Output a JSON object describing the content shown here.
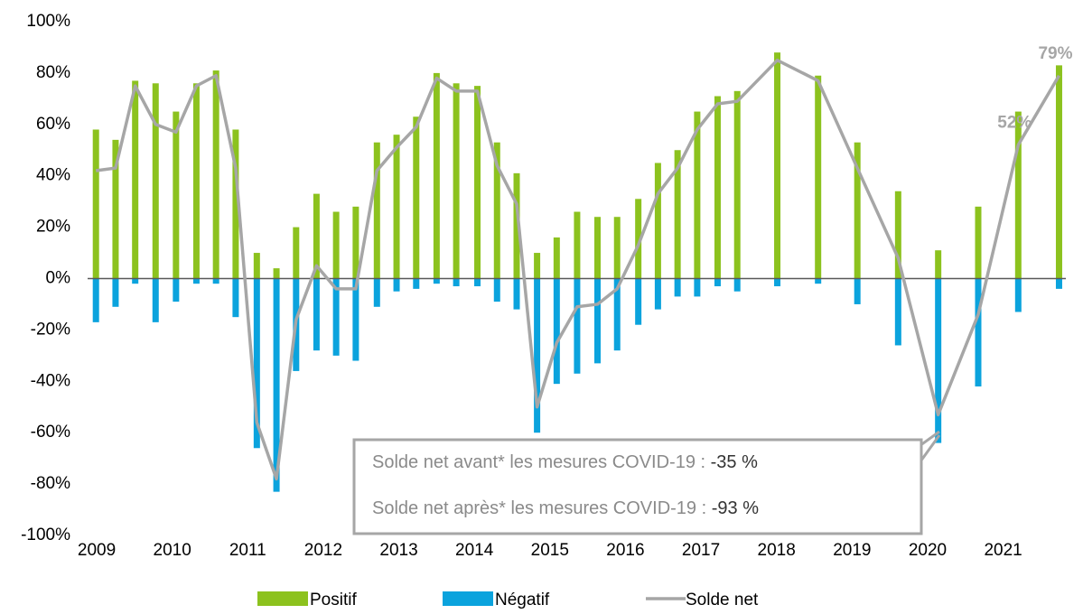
{
  "chart_data": {
    "type": "bar",
    "x": [
      2008.99,
      2009.25,
      2009.51,
      2009.78,
      2010.05,
      2010.32,
      2010.58,
      2010.84,
      2011.12,
      2011.38,
      2011.64,
      2011.91,
      2012.17,
      2012.43,
      2012.71,
      2012.97,
      2013.23,
      2013.5,
      2013.76,
      2014.04,
      2014.3,
      2014.56,
      2014.83,
      2015.09,
      2015.36,
      2015.63,
      2015.89,
      2016.17,
      2016.43,
      2016.69,
      2016.95,
      2017.22,
      2017.48,
      2018.01,
      2018.55,
      2019.07,
      2019.61,
      2020.14,
      2020.67,
      2021.2,
      2021.74
    ],
    "series": [
      {
        "name": "Positif",
        "type": "bar",
        "color": "#8cc21e",
        "values": [
          58,
          54,
          77,
          76,
          65,
          76,
          81,
          58,
          10,
          4,
          20,
          33,
          26,
          28,
          53,
          56,
          63,
          80,
          76,
          75,
          53,
          41,
          10,
          16,
          26,
          24,
          24,
          31,
          45,
          50,
          65,
          71,
          73,
          88,
          79,
          53,
          34,
          11,
          28,
          65,
          83
        ]
      },
      {
        "name": "Négatif",
        "type": "bar",
        "color": "#0ba3dd",
        "values": [
          -17,
          -11,
          -2,
          -17,
          -9,
          -2,
          -2,
          -15,
          -66,
          -83,
          -36,
          -28,
          -30,
          -32,
          -11,
          -5,
          -4,
          -2,
          -3,
          -3,
          -9,
          -12,
          -60,
          -41,
          -37,
          -33,
          -28,
          -18,
          -12,
          -7,
          -7,
          -3,
          -5,
          -3,
          -2,
          -10,
          -26,
          -64,
          -42,
          -13,
          -4
        ]
      },
      {
        "name": "Solde net",
        "type": "line",
        "color": "#a6a6a6",
        "values": [
          42,
          43,
          75,
          60,
          57,
          75,
          79,
          43,
          -56,
          -78,
          -16,
          5,
          -4,
          -4,
          42,
          51,
          59,
          78,
          73,
          73,
          44,
          29,
          -50,
          -25,
          -11,
          -10,
          -4,
          13,
          33,
          43,
          58,
          68,
          69,
          85,
          77,
          43,
          8,
          -53,
          -14,
          52,
          79
        ],
        "value_labels": [
          null,
          null,
          null,
          null,
          null,
          null,
          null,
          null,
          null,
          null,
          null,
          null,
          null,
          null,
          null,
          null,
          null,
          null,
          null,
          null,
          null,
          null,
          null,
          null,
          null,
          null,
          null,
          null,
          null,
          null,
          null,
          null,
          null,
          null,
          null,
          null,
          null,
          null,
          null,
          "52%",
          "79%"
        ]
      }
    ],
    "xlim": [
      2008.88,
      2021.83
    ],
    "xticks": [
      2009,
      2010,
      2011,
      2012,
      2013,
      2014,
      2015,
      2016,
      2017,
      2018,
      2019,
      2020,
      2021
    ],
    "ylim": [
      -100,
      100
    ],
    "yticks": [
      {
        "value": -100,
        "label": "-100%"
      },
      {
        "value": -80,
        "label": "-80%"
      },
      {
        "value": -60,
        "label": "-60%"
      },
      {
        "value": -40,
        "label": "-40%"
      },
      {
        "value": -20,
        "label": "-20%"
      },
      {
        "value": 0,
        "label": "0%"
      },
      {
        "value": 20,
        "label": "20%"
      },
      {
        "value": 40,
        "label": "40%"
      },
      {
        "value": 60,
        "label": "60%"
      },
      {
        "value": 80,
        "label": "80%"
      },
      {
        "value": 100,
        "label": "100%"
      }
    ],
    "annotations": [
      {
        "text": "Solde net avant* les mesures COVID-19 :",
        "value": "-35 %"
      },
      {
        "text": "Solde net après* les mesures COVID-19 :",
        "value": "-93 %"
      }
    ],
    "legend": "bottom"
  }
}
